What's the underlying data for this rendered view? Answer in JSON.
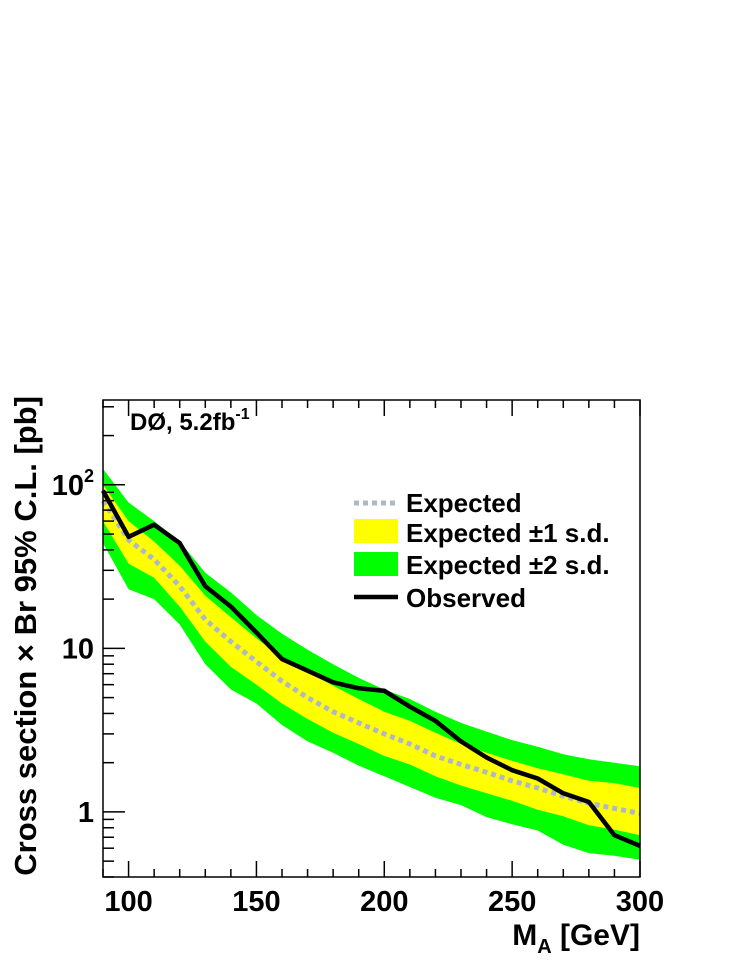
{
  "chart_data": {
    "type": "line",
    "annotation": {
      "main": "DØ, 5.2fb",
      "sup": "-1"
    },
    "xlabel": {
      "main": "M",
      "sub": "A",
      "rest": " [GeV]"
    },
    "ylabel": "Cross section × Br 95% C.L. [pb]",
    "xlim": [
      90,
      300
    ],
    "ylim": [
      0.4,
      330
    ],
    "yscale": "log",
    "x_ticks": [
      100,
      150,
      200,
      250,
      300
    ],
    "y_ticks": [
      {
        "value": 1,
        "base": "1",
        "exp": ""
      },
      {
        "value": 10,
        "base": "10",
        "exp": ""
      },
      {
        "value": 100,
        "base": "10",
        "exp": "2"
      }
    ],
    "x": [
      90,
      100,
      110,
      120,
      130,
      140,
      150,
      160,
      170,
      180,
      190,
      200,
      210,
      220,
      230,
      240,
      250,
      260,
      270,
      280,
      290,
      300
    ],
    "series": [
      {
        "name": "Expected ±2 s.d. upper",
        "values": [
          125,
          78,
          60,
          45,
          29,
          22,
          16,
          12.3,
          9.8,
          8.0,
          6.6,
          5.6,
          4.9,
          4.1,
          3.5,
          3.1,
          2.75,
          2.5,
          2.25,
          2.1,
          2.0,
          1.9
        ]
      },
      {
        "name": "Expected ±1 s.d. upper",
        "values": [
          100,
          60,
          45,
          32,
          21,
          15.5,
          11.5,
          8.8,
          7.2,
          5.9,
          4.9,
          4.1,
          3.6,
          3.05,
          2.6,
          2.3,
          2.05,
          1.85,
          1.7,
          1.55,
          1.5,
          1.4
        ]
      },
      {
        "name": "Expected",
        "values": [
          80,
          46,
          35,
          24,
          15,
          11,
          8.3,
          6.3,
          5.0,
          4.1,
          3.5,
          3.0,
          2.6,
          2.2,
          1.95,
          1.75,
          1.55,
          1.4,
          1.25,
          1.13,
          1.05,
          0.98
        ]
      },
      {
        "name": "Expected ±1 s.d. lower",
        "values": [
          60,
          33,
          27,
          18,
          11,
          7.7,
          6.0,
          4.6,
          3.7,
          3.05,
          2.6,
          2.2,
          1.95,
          1.65,
          1.45,
          1.3,
          1.17,
          1.03,
          0.94,
          0.83,
          0.78,
          0.72
        ]
      },
      {
        "name": "Expected ±2 s.d. lower",
        "values": [
          44,
          23,
          20,
          14,
          8.0,
          5.6,
          4.6,
          3.4,
          2.7,
          2.3,
          1.92,
          1.65,
          1.42,
          1.22,
          1.1,
          0.93,
          0.84,
          0.77,
          0.63,
          0.56,
          0.54,
          0.51
        ]
      },
      {
        "name": "Observed",
        "values": [
          92,
          48,
          57,
          44,
          24,
          18,
          12.5,
          8.6,
          7.3,
          6.2,
          5.7,
          5.5,
          4.4,
          3.6,
          2.7,
          2.15,
          1.8,
          1.6,
          1.3,
          1.15,
          0.72,
          0.62
        ]
      }
    ],
    "legend": {
      "position": "top-right",
      "entries": [
        {
          "label": "Expected",
          "style": "dotted-line"
        },
        {
          "label": "Expected ±1 s.d.",
          "style": "fill-1sd"
        },
        {
          "label": "Expected ±2 s.d.",
          "style": "fill-2sd"
        },
        {
          "label": "Observed",
          "style": "solid-line"
        }
      ]
    },
    "colors": {
      "band_2sd": "#00ff00",
      "band_1sd": "#ffff00",
      "expected": "#b0b8c4",
      "observed": "#000000",
      "axis": "#000000"
    }
  }
}
